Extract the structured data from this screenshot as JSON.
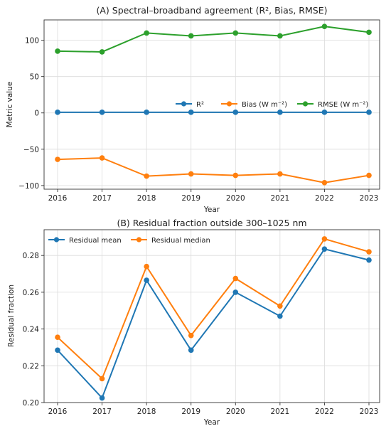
{
  "chart_data": [
    {
      "type": "line",
      "title": "(A) Spectral–broadband agreement (R², Bias, RMSE)",
      "xlabel": "Year",
      "ylabel": "Metric value",
      "x": [
        2016,
        2017,
        2018,
        2019,
        2020,
        2021,
        2022,
        2023
      ],
      "ylim": [
        -105,
        128
      ],
      "yticks": [
        -100,
        -50,
        0,
        50,
        100
      ],
      "grid": true,
      "legend_position": "center-right",
      "legend_ncol": 3,
      "series": [
        {
          "name": "R²",
          "color": "#1f77b4",
          "values": [
            0.9,
            0.9,
            0.9,
            0.9,
            0.9,
            0.9,
            0.9,
            0.9
          ]
        },
        {
          "name": "Bias (W m⁻²)",
          "color": "#ff7f0e",
          "values": [
            -64,
            -62,
            -87,
            -84,
            -86,
            -84,
            -96,
            -86
          ]
        },
        {
          "name": "RMSE (W m⁻²)",
          "color": "#2ca02c",
          "values": [
            85,
            84,
            110,
            106,
            110,
            106,
            119,
            111
          ]
        }
      ]
    },
    {
      "type": "line",
      "title": "(B) Residual fraction outside 300–1025 nm",
      "xlabel": "Year",
      "ylabel": "Residual fraction",
      "x": [
        2016,
        2017,
        2018,
        2019,
        2020,
        2021,
        2022,
        2023
      ],
      "ylim": [
        0.2,
        0.294
      ],
      "yticks": [
        0.2,
        0.22,
        0.24,
        0.26,
        0.28
      ],
      "yticklabels": [
        "0.20",
        "0.22",
        "0.24",
        "0.26",
        "0.28"
      ],
      "grid": true,
      "legend_position": "top-left",
      "legend_ncol": 2,
      "series": [
        {
          "name": "Residual mean",
          "color": "#1f77b4",
          "values": [
            0.2285,
            0.2025,
            0.2665,
            0.2285,
            0.26,
            0.247,
            0.2835,
            0.2775
          ]
        },
        {
          "name": "Residual median",
          "color": "#ff7f0e",
          "values": [
            0.2355,
            0.213,
            0.274,
            0.2365,
            0.2675,
            0.2525,
            0.289,
            0.282
          ]
        }
      ]
    }
  ]
}
